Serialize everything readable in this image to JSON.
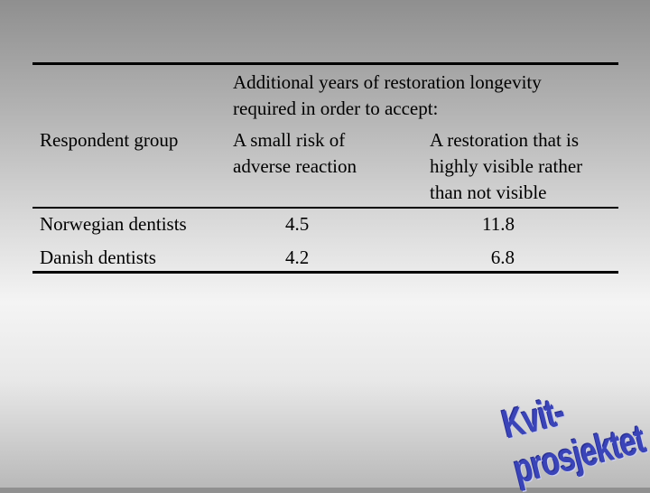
{
  "table": {
    "header": {
      "span_line1": "Additional years of restoration longevity",
      "span_line2": "required in order to accept:",
      "group_label": "Respondent group",
      "col1_line1": "A small risk of",
      "col1_line2": "adverse reaction",
      "col2_line1": "A restoration that is",
      "col2_line2": "highly visible rather",
      "col2_line3": "than not visible"
    },
    "rows": [
      {
        "group": "Norwegian dentists",
        "risk_years": "4.5",
        "visible_years": "11.8"
      },
      {
        "group": "Danish dentists",
        "risk_years": "4.2",
        "visible_years": "6.8"
      }
    ]
  },
  "logo": {
    "text": "Kvit-prosjektet",
    "color": "#3a44b8"
  }
}
